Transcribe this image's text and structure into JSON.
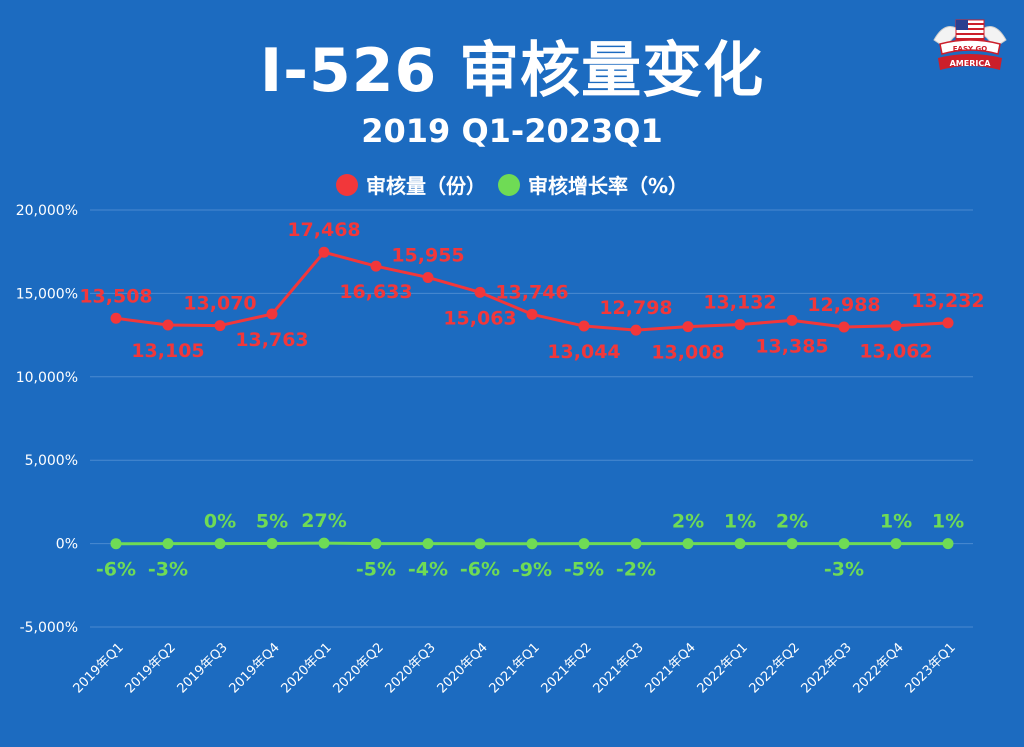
{
  "title": "I-526 审核量变化",
  "subtitle": "2019 Q1-2023Q1",
  "logo": {
    "line1": "EASY GO",
    "line2": "AMERICA"
  },
  "colors": {
    "background": "#1c6bc0",
    "series_review": "#f2373a",
    "series_growth": "#6fdb55",
    "grid": "#4a8ad0"
  },
  "chart_data": {
    "type": "line",
    "title": "I-526 审核量变化",
    "subtitle": "2019 Q1-2023Q1",
    "categories": [
      "2019年Q1",
      "2019年Q2",
      "2019年Q3",
      "2019年Q4",
      "2020年Q1",
      "2020年Q2",
      "2020年Q3",
      "2020年Q4",
      "2021年Q1",
      "2021年Q2",
      "2021年Q3",
      "2021年Q4",
      "2022年Q1",
      "2022年Q2",
      "2022年Q3",
      "2022年Q4",
      "2023年Q1"
    ],
    "y_ticks": [
      "-5,000%",
      "0%",
      "5,000%",
      "10,000%",
      "15,000%",
      "20,000%"
    ],
    "y_tick_values": [
      -5000,
      0,
      5000,
      10000,
      15000,
      20000
    ],
    "ylim": [
      -5000,
      20000
    ],
    "grid": true,
    "legend_position": "top-center",
    "series": [
      {
        "name": "审核量（份）",
        "values": [
          13508,
          13105,
          13070,
          13763,
          17468,
          16633,
          15955,
          15063,
          13746,
          13044,
          12798,
          13008,
          13132,
          13385,
          12988,
          13062,
          13232
        ],
        "labels": [
          "13,508",
          "13,105",
          "13,070",
          "13,763",
          "17,468",
          "16,633",
          "15,955",
          "15,063",
          "13,746",
          "13,044",
          "12,798",
          "13,008",
          "13,132",
          "13,385",
          "12,988",
          "13,062",
          "13,232"
        ],
        "label_positions": [
          "above",
          "below",
          "above",
          "below",
          "above",
          "below",
          "above",
          "below",
          "above",
          "below",
          "above",
          "below",
          "above",
          "below",
          "above",
          "below",
          "above"
        ]
      },
      {
        "name": "审核增长率（%）",
        "values": [
          -6,
          -3,
          0,
          5,
          27,
          -5,
          -4,
          -6,
          -9,
          -5,
          -2,
          2,
          1,
          2,
          -3,
          1,
          1
        ],
        "labels": [
          "-6%",
          "-3%",
          "0%",
          "5%",
          "27%",
          "-5%",
          "-4%",
          "-6%",
          "-9%",
          "-5%",
          "-2%",
          "2%",
          "1%",
          "2%",
          "-3%",
          "1%",
          "1%"
        ],
        "label_positions": [
          "below",
          "below",
          "above",
          "above",
          "above",
          "below",
          "below",
          "below",
          "below",
          "below",
          "below",
          "above",
          "above",
          "above",
          "below",
          "above",
          "above"
        ]
      }
    ]
  }
}
